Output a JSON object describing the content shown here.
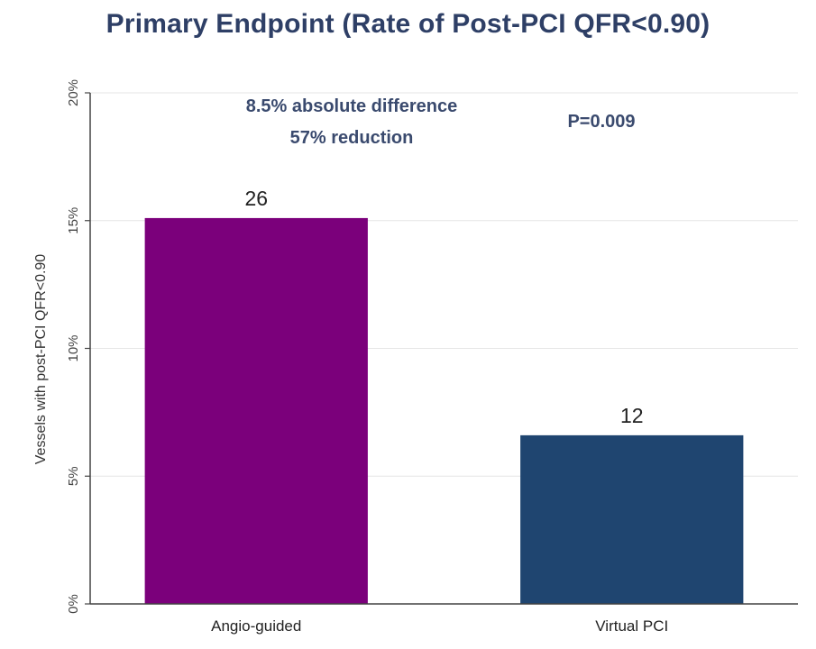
{
  "chart_data": {
    "type": "bar",
    "title": "Primary Endpoint (Rate of Post-PCI QFR<0.90)",
    "xlabel": "",
    "ylabel": "Vessels with post-PCI QFR<0.90",
    "categories": [
      "Angio-guided",
      "Virtual PCI"
    ],
    "values": [
      15.1,
      6.6
    ],
    "bar_labels": [
      "26",
      "12"
    ],
    "colors": [
      "#7b007b",
      "#1f4570"
    ],
    "ylim": [
      0,
      20
    ],
    "yticks": [
      0,
      5,
      10,
      15,
      20
    ],
    "ytick_labels": [
      "0%",
      "5%",
      "10%",
      "15%",
      "20%"
    ],
    "grid": true,
    "annotations": [
      {
        "text": "8.5% absolute difference"
      },
      {
        "text": "57% reduction"
      },
      {
        "text": "P=0.009"
      }
    ]
  }
}
